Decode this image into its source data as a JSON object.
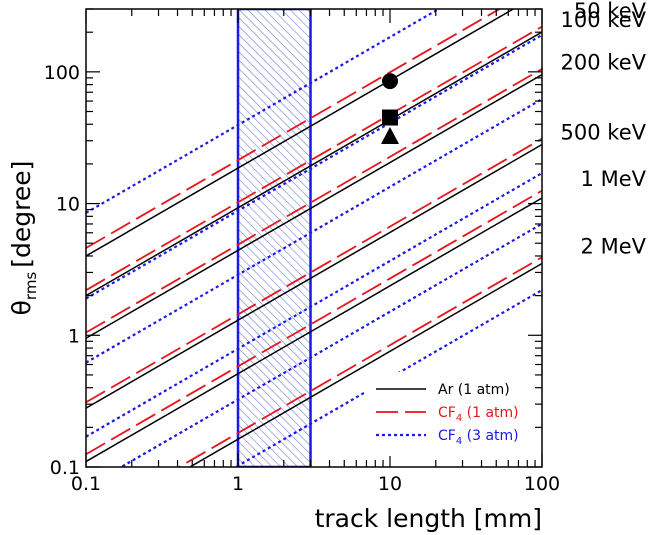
{
  "chart_data": {
    "type": "line",
    "xlabel": "track length [mm]",
    "ylabel_main": "θ",
    "ylabel_sub": "rms",
    "ylabel_unit": "[degree]",
    "xscale": "log",
    "yscale": "log",
    "xlim": [
      0.1,
      100
    ],
    "ylim": [
      0.1,
      300
    ],
    "x_ticks": [
      {
        "value": 0.1,
        "label": "0.1"
      },
      {
        "value": 1,
        "label": "1"
      },
      {
        "value": 10,
        "label": "10"
      },
      {
        "value": 100,
        "label": "100"
      }
    ],
    "y_ticks": [
      {
        "value": 0.1,
        "label": "0.1"
      },
      {
        "value": 1,
        "label": "1"
      },
      {
        "value": 10,
        "label": "10"
      },
      {
        "value": 100,
        "label": "100"
      }
    ],
    "energies": [
      "50 keV",
      "100 keV",
      "200 keV",
      "500 keV",
      "1 MeV",
      "2 MeV"
    ],
    "series": [
      {
        "name": "Ar (1 atm)",
        "name_sub": "",
        "name_suffix": "",
        "color": "#000000",
        "dash": "solid",
        "lines": [
          {
            "energy": "50 keV",
            "y_at_x0_1": 4.0
          },
          {
            "energy": "100 keV",
            "y_at_x0_1": 2.0
          },
          {
            "energy": "200 keV",
            "y_at_x0_1": 0.95
          },
          {
            "energy": "500 keV",
            "y_at_x0_1": 0.28
          },
          {
            "energy": "1 MeV",
            "y_at_x0_1": 0.11
          },
          {
            "energy": "2 MeV",
            "y_at_x0_1": 0.035
          }
        ]
      },
      {
        "name": "CF",
        "name_sub": "4",
        "name_suffix": " (1 atm)",
        "color": "#e8141b",
        "dash": "long-dash",
        "lines": [
          {
            "energy": "50 keV",
            "y_at_x0_1": 4.6
          },
          {
            "energy": "100 keV",
            "y_at_x0_1": 2.2
          },
          {
            "energy": "200 keV",
            "y_at_x0_1": 1.05
          },
          {
            "energy": "500 keV",
            "y_at_x0_1": 0.31
          },
          {
            "energy": "1 MeV",
            "y_at_x0_1": 0.125
          },
          {
            "energy": "2 MeV",
            "y_at_x0_1": 0.039
          }
        ]
      },
      {
        "name": "CF",
        "name_sub": "4",
        "name_suffix": " (3 atm)",
        "color": "#1a1ae6",
        "dash": "dotted",
        "lines": [
          {
            "energy": "50 keV",
            "y_at_x0_1": 8.5
          },
          {
            "energy": "100 keV",
            "y_at_x0_1": 1.9
          },
          {
            "energy": "200 keV",
            "y_at_x0_1": 0.62
          },
          {
            "energy": "500 keV",
            "y_at_x0_1": 0.17
          },
          {
            "energy": "1 MeV",
            "y_at_x0_1": 0.07
          },
          {
            "energy": "2 MeV",
            "y_at_x0_1": 0.022
          }
        ]
      }
    ],
    "slope_decades_per_decade": 0.667,
    "shaded_region": {
      "x": [
        1,
        3
      ],
      "color": "#1a1ae6"
    },
    "markers": [
      {
        "shape": "circle",
        "x": 10,
        "y": 85
      },
      {
        "shape": "square",
        "x": 10,
        "y": 45
      },
      {
        "shape": "triangle",
        "x": 10,
        "y": 32
      }
    ],
    "legend": {
      "position": "bottom-right"
    }
  }
}
